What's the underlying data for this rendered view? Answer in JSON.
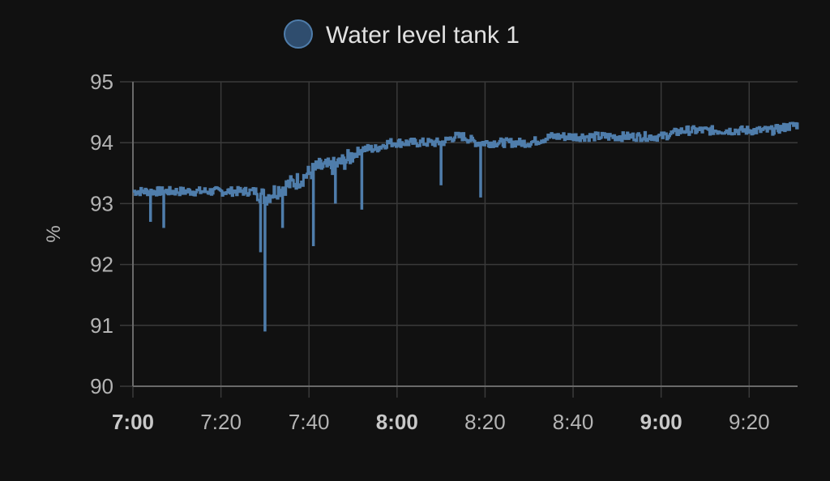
{
  "chart_data": {
    "type": "line",
    "title": "",
    "xlabel": "",
    "ylabel": "%",
    "ylim": [
      90,
      95
    ],
    "xlim": [
      "7:00",
      "9:31"
    ],
    "grid": true,
    "legend_position": "top-center",
    "y_ticks": [
      "90",
      "91",
      "92",
      "93",
      "94",
      "95"
    ],
    "x_ticks": [
      {
        "label": "7:00",
        "bold": true
      },
      {
        "label": "7:20",
        "bold": false
      },
      {
        "label": "7:40",
        "bold": false
      },
      {
        "label": "8:00",
        "bold": true
      },
      {
        "label": "8:20",
        "bold": false
      },
      {
        "label": "8:40",
        "bold": false
      },
      {
        "label": "9:00",
        "bold": true
      },
      {
        "label": "9:20",
        "bold": false
      }
    ],
    "series": [
      {
        "name": "Water level tank 1",
        "color": "#4f7dab",
        "x": [
          "7:00",
          "7:05",
          "7:10",
          "7:15",
          "7:20",
          "7:25",
          "7:28",
          "7:30",
          "7:32",
          "7:35",
          "7:38",
          "7:40",
          "7:42",
          "7:45",
          "7:48",
          "7:50",
          "7:52",
          "7:55",
          "7:58",
          "8:00",
          "8:05",
          "8:10",
          "8:13",
          "8:15",
          "8:18",
          "8:20",
          "8:25",
          "8:30",
          "8:35",
          "8:40",
          "8:45",
          "8:50",
          "8:55",
          "9:00",
          "9:05",
          "9:10",
          "9:15",
          "9:20",
          "9:25",
          "9:31"
        ],
        "values": [
          93.2,
          93.2,
          93.2,
          93.2,
          93.2,
          93.2,
          93.2,
          93.1,
          93.2,
          93.3,
          93.4,
          93.5,
          93.6,
          93.6,
          93.7,
          93.8,
          93.9,
          93.9,
          94.0,
          94.0,
          94.0,
          94.0,
          94.1,
          94.1,
          94.0,
          94.0,
          94.0,
          94.0,
          94.1,
          94.1,
          94.1,
          94.1,
          94.1,
          94.1,
          94.2,
          94.2,
          94.2,
          94.2,
          94.2,
          94.3
        ]
      }
    ],
    "dips": [
      {
        "x": "7:04",
        "value": 92.7
      },
      {
        "x": "7:07",
        "value": 92.6
      },
      {
        "x": "7:29",
        "value": 92.2
      },
      {
        "x": "7:30",
        "value": 90.9
      },
      {
        "x": "7:34",
        "value": 92.6
      },
      {
        "x": "7:41",
        "value": 92.3
      },
      {
        "x": "7:46",
        "value": 93.0
      },
      {
        "x": "7:52",
        "value": 92.9
      },
      {
        "x": "8:10",
        "value": 93.3
      },
      {
        "x": "8:19",
        "value": 93.1
      }
    ]
  }
}
